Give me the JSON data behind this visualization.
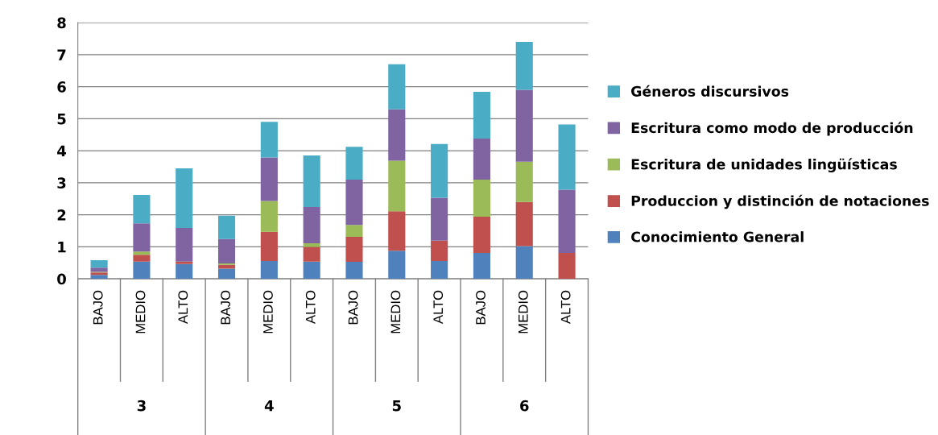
{
  "chart_data": {
    "type": "bar",
    "stacked": true,
    "categories": [
      "BAJO",
      "MEDIO",
      "ALTO",
      "BAJO",
      "MEDIO",
      "ALTO",
      "BAJO",
      "MEDIO",
      "ALTO",
      "BAJO",
      "MEDIO",
      "ALTO"
    ],
    "annotations": [
      "3",
      "4",
      "5",
      "6"
    ],
    "series": [
      {
        "name": "Conocimiento General",
        "color": "#4f81bd",
        "values": [
          0.12,
          0.54,
          0.46,
          0.32,
          0.56,
          0.54,
          0.53,
          0.88,
          0.56,
          0.81,
          1.02,
          0
        ]
      },
      {
        "name": "Produccion y distinción de notaciones",
        "color": "#c0504d",
        "values": [
          0.08,
          0.21,
          0.08,
          0.12,
          0.91,
          0.46,
          0.78,
          1.23,
          0.63,
          1.13,
          1.38,
          0.81
        ]
      },
      {
        "name": "Escritura de unidades lingüísticas",
        "color": "#9bbb59",
        "values": [
          0.02,
          0.1,
          0,
          0.04,
          0.96,
          0.11,
          0.37,
          1.58,
          0,
          1.16,
          1.26,
          0
        ]
      },
      {
        "name": "Escritura como modo de producción",
        "color": "#8064a2",
        "values": [
          0.13,
          0.88,
          1.05,
          0.76,
          1.36,
          1.13,
          1.42,
          1.6,
          1.34,
          1.28,
          2.24,
          1.97
        ]
      },
      {
        "name": "Géneros discursivos",
        "color": "#4bacc6",
        "values": [
          0.23,
          0.89,
          1.86,
          0.73,
          1.11,
          1.61,
          1.02,
          1.41,
          1.68,
          1.46,
          1.5,
          2.04
        ]
      }
    ],
    "ylim": [
      0,
      8
    ],
    "yticks": [
      0,
      1,
      2,
      3,
      4,
      5,
      6,
      7,
      8
    ],
    "grid": "y",
    "legend": "right"
  }
}
